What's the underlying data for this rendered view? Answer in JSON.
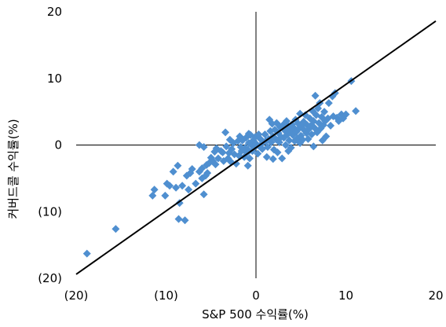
{
  "chart_data": {
    "type": "scatter",
    "title": "",
    "xlabel": "S&P 500 수익률(%)",
    "ylabel": "커버드콜 수익률(%)",
    "xlim": [
      -20,
      20
    ],
    "ylim": [
      -20,
      20
    ],
    "x_ticks": [
      -20,
      -10,
      0,
      10,
      20
    ],
    "y_ticks": [
      -20,
      -10,
      0,
      10,
      20
    ],
    "x_tick_labels": [
      "(20)",
      "(10)",
      "0",
      "10",
      "20"
    ],
    "y_tick_labels": [
      "(20)",
      "(10)",
      "0",
      "10",
      "20"
    ],
    "grid": false,
    "legend": "none",
    "colors": {
      "points": "#4f8fd0",
      "line": "#000000",
      "axes": "#000000"
    },
    "marker": "diamond",
    "series": [
      {
        "type": "scatter",
        "points": [
          [
            -18.8,
            -16.3
          ],
          [
            -15.6,
            -12.6
          ],
          [
            -11.5,
            -7.6
          ],
          [
            -11.3,
            -6.7
          ],
          [
            -10.1,
            -7.6
          ],
          [
            -9.9,
            -5.8
          ],
          [
            -9.6,
            -6.1
          ],
          [
            -9.2,
            -4.0
          ],
          [
            -8.9,
            -6.4
          ],
          [
            -8.7,
            -3.1
          ],
          [
            -8.6,
            -11.1
          ],
          [
            -8.5,
            -8.7
          ],
          [
            -7.9,
            -11.3
          ],
          [
            -8.2,
            -6.1
          ],
          [
            -7.7,
            -4.6
          ],
          [
            -7.5,
            -6.7
          ],
          [
            -7.3,
            -4.2
          ],
          [
            -7.1,
            -3.6
          ],
          [
            -6.7,
            -5.8
          ],
          [
            -6.3,
            -4.0
          ],
          [
            -6.0,
            -3.5
          ],
          [
            -5.8,
            -7.4
          ],
          [
            -6.0,
            -5.0
          ],
          [
            -5.4,
            -4.2
          ],
          [
            -5.5,
            -3.0
          ],
          [
            -5.2,
            -2.7
          ],
          [
            -5.6,
            -4.6
          ],
          [
            -6.3,
            0.0
          ],
          [
            -5.8,
            -0.3
          ],
          [
            -5.0,
            -1.9
          ],
          [
            -4.8,
            -2.4
          ],
          [
            -4.5,
            -2.9
          ],
          [
            -4.6,
            -1.0
          ],
          [
            -4.2,
            -2.0
          ],
          [
            -4.4,
            -0.5
          ],
          [
            -3.9,
            -0.9
          ],
          [
            -3.6,
            -2.4
          ],
          [
            -3.7,
            -1.1
          ],
          [
            -3.4,
            1.9
          ],
          [
            -3.3,
            -0.2
          ],
          [
            -3.1,
            -2.0
          ],
          [
            -3.0,
            -1.2
          ],
          [
            -2.7,
            -0.6
          ],
          [
            -2.5,
            0.3
          ],
          [
            -2.4,
            -1.4
          ],
          [
            -2.2,
            -2.8
          ],
          [
            -2.0,
            0.6
          ],
          [
            -1.9,
            -1.6
          ],
          [
            -1.7,
            -0.3
          ],
          [
            -1.6,
            -0.9
          ],
          [
            -1.5,
            0.7
          ],
          [
            -1.3,
            -1.8
          ],
          [
            -1.2,
            -0.4
          ],
          [
            -1.1,
            1.1
          ],
          [
            -1.0,
            -1.2
          ],
          [
            -0.9,
            -0.7
          ],
          [
            -0.8,
            0.3
          ],
          [
            -0.7,
            -2.0
          ],
          [
            -0.6,
            1.5
          ],
          [
            -0.5,
            0.0
          ],
          [
            -0.4,
            -0.9
          ],
          [
            -0.3,
            0.7
          ],
          [
            -0.2,
            -0.4
          ],
          [
            -0.1,
            1.2
          ],
          [
            0.0,
            0.2
          ],
          [
            -0.9,
            -3.1
          ],
          [
            -2.8,
            -2.5
          ],
          [
            -2.9,
            0.8
          ],
          [
            -1.8,
            1.3
          ],
          [
            -0.8,
            1.7
          ],
          [
            0.3,
            1.6
          ],
          [
            0.4,
            -0.2
          ],
          [
            0.5,
            0.9
          ],
          [
            0.7,
            -0.6
          ],
          [
            0.8,
            0.4
          ],
          [
            1.0,
            1.6
          ],
          [
            1.1,
            0.6
          ],
          [
            1.2,
            -1.8
          ],
          [
            1.3,
            -0.3
          ],
          [
            1.4,
            0.9
          ],
          [
            1.5,
            3.8
          ],
          [
            1.6,
            2.1
          ],
          [
            1.7,
            0.4
          ],
          [
            1.8,
            3.2
          ],
          [
            1.9,
            1.3
          ],
          [
            2.0,
            -0.7
          ],
          [
            2.1,
            2.3
          ],
          [
            2.2,
            0.9
          ],
          [
            2.3,
            3.3
          ],
          [
            2.4,
            -1.1
          ],
          [
            2.5,
            1.8
          ],
          [
            2.6,
            0.4
          ],
          [
            2.7,
            2.7
          ],
          [
            2.8,
            1.2
          ],
          [
            2.9,
            -2.0
          ],
          [
            3.0,
            3.0
          ],
          [
            3.1,
            1.1
          ],
          [
            3.2,
            2.2
          ],
          [
            3.3,
            0.0
          ],
          [
            3.4,
            3.6
          ],
          [
            3.5,
            1.6
          ],
          [
            3.6,
            2.8
          ],
          [
            3.7,
            0.7
          ],
          [
            3.8,
            2.0
          ],
          [
            3.9,
            -0.4
          ],
          [
            4.0,
            3.1
          ],
          [
            4.1,
            1.5
          ],
          [
            4.2,
            2.6
          ],
          [
            4.3,
            0.6
          ],
          [
            4.4,
            3.8
          ],
          [
            4.5,
            2.0
          ],
          [
            4.6,
            1.0
          ],
          [
            4.7,
            3.2
          ],
          [
            4.8,
            2.5
          ],
          [
            4.9,
            4.7
          ],
          [
            5.0,
            1.4
          ],
          [
            5.1,
            2.9
          ],
          [
            5.2,
            0.8
          ],
          [
            5.3,
            3.5
          ],
          [
            5.4,
            2.2
          ],
          [
            5.5,
            4.5
          ],
          [
            5.6,
            1.8
          ],
          [
            5.7,
            3.0
          ],
          [
            5.8,
            0.9
          ],
          [
            5.9,
            2.4
          ],
          [
            6.0,
            4.0
          ],
          [
            6.1,
            2.9
          ],
          [
            6.2,
            1.6
          ],
          [
            6.3,
            5.1
          ],
          [
            6.4,
            3.6
          ],
          [
            6.5,
            2.6
          ],
          [
            6.6,
            7.4
          ],
          [
            6.7,
            4.5
          ],
          [
            6.8,
            1.9
          ],
          [
            6.9,
            5.5
          ],
          [
            7.0,
            3.3
          ],
          [
            7.1,
            6.3
          ],
          [
            7.2,
            2.5
          ],
          [
            7.3,
            4.2
          ],
          [
            7.4,
            0.7
          ],
          [
            7.5,
            3.0
          ],
          [
            7.6,
            5.0
          ],
          [
            7.8,
            1.3
          ],
          [
            8.0,
            4.0
          ],
          [
            8.1,
            6.3
          ],
          [
            8.3,
            2.9
          ],
          [
            8.5,
            7.3
          ],
          [
            8.6,
            4.3
          ],
          [
            8.8,
            7.8
          ],
          [
            9.0,
            4.1
          ],
          [
            9.2,
            3.6
          ],
          [
            9.5,
            4.6
          ],
          [
            9.7,
            4.0
          ],
          [
            10.0,
            4.6
          ],
          [
            10.6,
            9.6
          ],
          [
            11.1,
            5.1
          ],
          [
            0.2,
            -1.3
          ],
          [
            1.9,
            -2.1
          ],
          [
            3.6,
            -0.9
          ],
          [
            4.9,
            0.3
          ],
          [
            6.4,
            -0.2
          ],
          [
            7.7,
            3.6
          ]
        ]
      },
      {
        "type": "line",
        "points": [
          [
            -20,
            -19.4
          ],
          [
            20,
            18.6
          ]
        ]
      }
    ]
  }
}
